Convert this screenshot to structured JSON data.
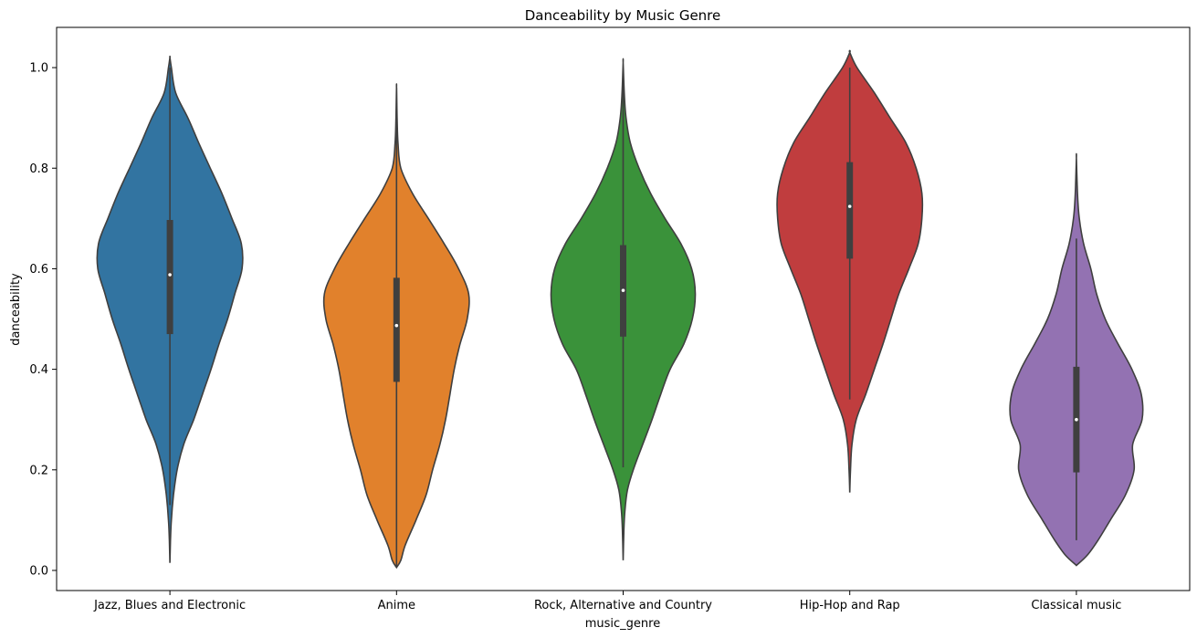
{
  "chart_data": {
    "type": "violin",
    "title": "Danceability by Music Genre",
    "xlabel": "music_genre",
    "ylabel": "danceability",
    "ylim": [
      -0.04,
      1.08
    ],
    "yticks": [
      0.0,
      0.2,
      0.4,
      0.6,
      0.8,
      1.0
    ],
    "ytick_labels": [
      "0.0",
      "0.2",
      "0.4",
      "0.6",
      "0.8",
      "1.0"
    ],
    "grid": false,
    "categories": [
      "Jazz, Blues and Electronic",
      "Anime",
      "Rock, Alternative and Country",
      "Hip-Hop and Rap",
      "Classical music"
    ],
    "series": [
      {
        "category": "Jazz, Blues and Electronic",
        "color": "#3274a1",
        "min": 0.015,
        "max": 1.02,
        "q1": 0.47,
        "median": 0.588,
        "q3": 0.697,
        "whisker_low": 0.13,
        "whisker_high": 1.0,
        "density": [
          [
            0.015,
            0
          ],
          [
            0.06,
            0.008
          ],
          [
            0.1,
            0.02
          ],
          [
            0.15,
            0.05
          ],
          [
            0.2,
            0.1
          ],
          [
            0.25,
            0.19
          ],
          [
            0.3,
            0.33
          ],
          [
            0.35,
            0.45
          ],
          [
            0.4,
            0.57
          ],
          [
            0.45,
            0.68
          ],
          [
            0.5,
            0.8
          ],
          [
            0.55,
            0.9
          ],
          [
            0.6,
            1.0
          ],
          [
            0.65,
            0.99
          ],
          [
            0.7,
            0.86
          ],
          [
            0.75,
            0.72
          ],
          [
            0.8,
            0.56
          ],
          [
            0.85,
            0.4
          ],
          [
            0.9,
            0.25
          ],
          [
            0.95,
            0.08
          ],
          [
            1.0,
            0.02
          ],
          [
            1.02,
            0
          ]
        ]
      },
      {
        "category": "Anime",
        "color": "#e1812c",
        "min": 0.006,
        "max": 0.96,
        "q1": 0.375,
        "median": 0.487,
        "q3": 0.582,
        "whisker_low": 0.006,
        "whisker_high": 0.96,
        "density": [
          [
            0.006,
            0
          ],
          [
            0.02,
            0.06
          ],
          [
            0.05,
            0.12
          ],
          [
            0.1,
            0.27
          ],
          [
            0.15,
            0.41
          ],
          [
            0.2,
            0.5
          ],
          [
            0.25,
            0.6
          ],
          [
            0.3,
            0.68
          ],
          [
            0.35,
            0.74
          ],
          [
            0.4,
            0.8
          ],
          [
            0.45,
            0.88
          ],
          [
            0.5,
            0.98
          ],
          [
            0.55,
            1.0
          ],
          [
            0.6,
            0.86
          ],
          [
            0.65,
            0.66
          ],
          [
            0.7,
            0.44
          ],
          [
            0.75,
            0.22
          ],
          [
            0.8,
            0.06
          ],
          [
            0.85,
            0.02
          ],
          [
            0.9,
            0.008
          ],
          [
            0.96,
            0
          ]
        ]
      },
      {
        "category": "Rock, Alternative and Country",
        "color": "#3a923a",
        "min": 0.02,
        "max": 1.01,
        "q1": 0.465,
        "median": 0.557,
        "q3": 0.647,
        "whisker_low": 0.205,
        "whisker_high": 1.0,
        "density": [
          [
            0.02,
            0
          ],
          [
            0.08,
            0.01
          ],
          [
            0.12,
            0.025
          ],
          [
            0.16,
            0.06
          ],
          [
            0.2,
            0.14
          ],
          [
            0.25,
            0.27
          ],
          [
            0.3,
            0.4
          ],
          [
            0.35,
            0.52
          ],
          [
            0.4,
            0.65
          ],
          [
            0.45,
            0.84
          ],
          [
            0.5,
            0.96
          ],
          [
            0.55,
            1.0
          ],
          [
            0.6,
            0.95
          ],
          [
            0.65,
            0.8
          ],
          [
            0.7,
            0.58
          ],
          [
            0.75,
            0.38
          ],
          [
            0.8,
            0.22
          ],
          [
            0.85,
            0.1
          ],
          [
            0.9,
            0.04
          ],
          [
            0.95,
            0.015
          ],
          [
            1.01,
            0
          ]
        ]
      },
      {
        "category": "Hip-Hop and Rap",
        "color": "#c03d3e",
        "min": 0.155,
        "max": 1.03,
        "q1": 0.62,
        "median": 0.724,
        "q3": 0.812,
        "whisker_low": 0.34,
        "whisker_high": 1.0,
        "density": [
          [
            0.155,
            0
          ],
          [
            0.2,
            0.01
          ],
          [
            0.25,
            0.03
          ],
          [
            0.3,
            0.09
          ],
          [
            0.35,
            0.22
          ],
          [
            0.4,
            0.34
          ],
          [
            0.45,
            0.46
          ],
          [
            0.5,
            0.57
          ],
          [
            0.55,
            0.68
          ],
          [
            0.6,
            0.82
          ],
          [
            0.65,
            0.95
          ],
          [
            0.7,
            1.0
          ],
          [
            0.75,
            1.0
          ],
          [
            0.8,
            0.92
          ],
          [
            0.85,
            0.78
          ],
          [
            0.9,
            0.56
          ],
          [
            0.95,
            0.34
          ],
          [
            1.0,
            0.1
          ],
          [
            1.03,
            0
          ]
        ]
      },
      {
        "category": "Classical music",
        "color": "#9372b2",
        "min": 0.01,
        "max": 0.82,
        "q1": 0.195,
        "median": 0.3,
        "q3": 0.405,
        "whisker_low": 0.06,
        "whisker_high": 0.66,
        "density": [
          [
            0.01,
            0
          ],
          [
            0.03,
            0.15
          ],
          [
            0.06,
            0.3
          ],
          [
            0.1,
            0.47
          ],
          [
            0.15,
            0.68
          ],
          [
            0.2,
            0.8
          ],
          [
            0.25,
            0.78
          ],
          [
            0.3,
            0.91
          ],
          [
            0.35,
            0.9
          ],
          [
            0.4,
            0.77
          ],
          [
            0.45,
            0.58
          ],
          [
            0.5,
            0.4
          ],
          [
            0.55,
            0.28
          ],
          [
            0.6,
            0.2
          ],
          [
            0.65,
            0.1
          ],
          [
            0.7,
            0.04
          ],
          [
            0.75,
            0.015
          ],
          [
            0.82,
            0
          ]
        ]
      }
    ]
  }
}
